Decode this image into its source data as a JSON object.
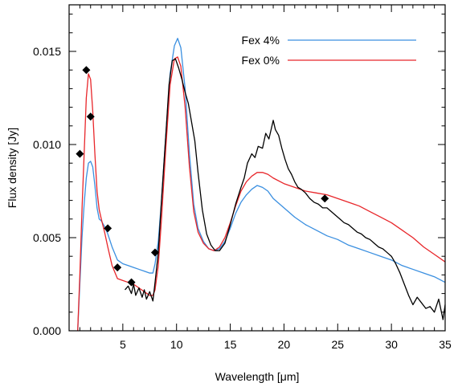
{
  "chart_data": {
    "type": "line",
    "xlabel": "Wavelength [μm]",
    "ylabel": "Flux density [Jy]",
    "xlim": [
      0,
      35
    ],
    "ylim": [
      0,
      0.0175
    ],
    "x_ticks": [
      5,
      10,
      15,
      20,
      25,
      30,
      35
    ],
    "x_tick_labels": [
      "5",
      "10",
      "15",
      "20",
      "25",
      "30",
      "35"
    ],
    "y_ticks": [
      0.0,
      0.005,
      0.01,
      0.015
    ],
    "y_tick_labels": [
      "0.000",
      "0.005",
      "0.010",
      "0.015"
    ],
    "legend_position": "top-right",
    "series": [
      {
        "name": "Fex 4%",
        "color": "#3a8fe0",
        "x": [
          0.8,
          1.0,
          1.2,
          1.4,
          1.6,
          1.8,
          2.0,
          2.2,
          2.4,
          2.6,
          2.8,
          3.0,
          3.3,
          3.6,
          4.0,
          4.5,
          5.0,
          5.5,
          6.0,
          6.5,
          7.0,
          7.5,
          7.8,
          8.0,
          8.3,
          8.6,
          9.0,
          9.4,
          9.8,
          10.1,
          10.4,
          10.8,
          11.2,
          11.6,
          12.0,
          12.5,
          13.0,
          13.5,
          14.0,
          14.5,
          15.0,
          15.5,
          16.0,
          16.5,
          17.0,
          17.5,
          18.0,
          18.5,
          19.0,
          20.0,
          21.0,
          22.0,
          23.0,
          24.0,
          25.0,
          26.0,
          27.0,
          28.0,
          29.0,
          30.0,
          31.0,
          32.0,
          33.0,
          34.0,
          35.0
        ],
        "y": [
          0.0,
          0.0025,
          0.005,
          0.0068,
          0.0082,
          0.009,
          0.0091,
          0.0088,
          0.0078,
          0.0066,
          0.006,
          0.0059,
          0.0056,
          0.0052,
          0.0045,
          0.0038,
          0.0036,
          0.0035,
          0.0034,
          0.0033,
          0.0032,
          0.0031,
          0.0031,
          0.0036,
          0.0048,
          0.007,
          0.0105,
          0.0138,
          0.0153,
          0.0157,
          0.0152,
          0.013,
          0.0095,
          0.0068,
          0.0055,
          0.0048,
          0.0044,
          0.0043,
          0.0044,
          0.0048,
          0.0055,
          0.0063,
          0.0069,
          0.0073,
          0.0076,
          0.0078,
          0.0077,
          0.0075,
          0.0071,
          0.0066,
          0.0061,
          0.0057,
          0.0054,
          0.0051,
          0.0049,
          0.0046,
          0.0044,
          0.0042,
          0.004,
          0.0038,
          0.0035,
          0.0033,
          0.0031,
          0.0029,
          0.0026
        ]
      },
      {
        "name": "Fex 0%",
        "color": "#e8262a",
        "x": [
          0.8,
          1.0,
          1.2,
          1.4,
          1.6,
          1.8,
          2.0,
          2.2,
          2.4,
          2.6,
          2.8,
          3.0,
          3.3,
          3.6,
          4.0,
          4.5,
          5.0,
          5.5,
          6.0,
          6.5,
          7.0,
          7.5,
          7.8,
          8.0,
          8.3,
          8.6,
          9.0,
          9.4,
          9.8,
          10.1,
          10.4,
          10.8,
          11.2,
          11.6,
          12.0,
          12.5,
          13.0,
          13.5,
          14.0,
          14.5,
          15.0,
          15.5,
          16.0,
          16.5,
          17.0,
          17.5,
          18.0,
          18.5,
          19.0,
          20.0,
          21.0,
          22.0,
          23.0,
          24.0,
          25.0,
          26.0,
          27.0,
          28.0,
          29.0,
          30.0,
          31.0,
          32.0,
          33.0,
          34.0,
          35.0
        ],
        "y": [
          0.0,
          0.003,
          0.0065,
          0.0095,
          0.0125,
          0.0138,
          0.0135,
          0.0118,
          0.0095,
          0.0075,
          0.0065,
          0.006,
          0.0053,
          0.0045,
          0.0035,
          0.0028,
          0.0027,
          0.0026,
          0.0025,
          0.0023,
          0.0021,
          0.0019,
          0.0019,
          0.0022,
          0.0035,
          0.006,
          0.0098,
          0.0132,
          0.0146,
          0.0147,
          0.0142,
          0.012,
          0.0088,
          0.0064,
          0.0053,
          0.0047,
          0.0044,
          0.0043,
          0.0045,
          0.005,
          0.0058,
          0.0067,
          0.0075,
          0.008,
          0.0083,
          0.0085,
          0.0085,
          0.0084,
          0.0082,
          0.0079,
          0.0077,
          0.0075,
          0.0074,
          0.0073,
          0.0071,
          0.0069,
          0.0067,
          0.0064,
          0.0061,
          0.0058,
          0.0054,
          0.005,
          0.0045,
          0.0041,
          0.0037
        ]
      },
      {
        "name": "",
        "color": "#000000",
        "x": [
          5.2,
          5.5,
          5.8,
          6.0,
          6.2,
          6.5,
          6.8,
          7.0,
          7.2,
          7.5,
          7.8,
          8.0,
          8.3,
          8.6,
          9.0,
          9.3,
          9.6,
          9.9,
          10.2,
          10.5,
          10.8,
          11.1,
          11.4,
          11.7,
          12.0,
          12.4,
          12.8,
          13.2,
          13.6,
          14.0,
          14.5,
          15.0,
          15.5,
          16.0,
          16.3,
          16.6,
          17.0,
          17.3,
          17.6,
          18.0,
          18.3,
          18.6,
          19.0,
          19.2,
          19.5,
          19.8,
          20.1,
          20.4,
          20.7,
          21.0,
          21.3,
          21.6,
          22.0,
          22.4,
          22.8,
          23.2,
          23.6,
          24.0,
          24.4,
          24.8,
          25.2,
          25.6,
          26.0,
          26.4,
          26.8,
          27.2,
          27.6,
          28.0,
          28.4,
          28.8,
          29.2,
          29.6,
          30.0,
          30.4,
          30.8,
          31.2,
          31.6,
          32.0,
          32.4,
          32.8,
          33.2,
          33.6,
          34.0,
          34.4,
          34.8,
          35.0
        ],
        "y": [
          0.0022,
          0.0024,
          0.002,
          0.0025,
          0.0019,
          0.0023,
          0.0018,
          0.0022,
          0.0017,
          0.0021,
          0.0016,
          0.0026,
          0.0042,
          0.007,
          0.0105,
          0.0132,
          0.0145,
          0.0146,
          0.0141,
          0.0135,
          0.0128,
          0.0122,
          0.0112,
          0.0102,
          0.0085,
          0.0065,
          0.0052,
          0.0046,
          0.0043,
          0.0043,
          0.0047,
          0.0057,
          0.0068,
          0.0077,
          0.0082,
          0.009,
          0.0095,
          0.0093,
          0.0099,
          0.0098,
          0.0106,
          0.0103,
          0.0113,
          0.0108,
          0.0105,
          0.0098,
          0.0092,
          0.0087,
          0.0084,
          0.008,
          0.0077,
          0.0076,
          0.0074,
          0.0071,
          0.0069,
          0.0068,
          0.0066,
          0.0066,
          0.0064,
          0.0062,
          0.006,
          0.0058,
          0.0057,
          0.0055,
          0.0053,
          0.0052,
          0.005,
          0.0049,
          0.0047,
          0.0045,
          0.0044,
          0.0042,
          0.004,
          0.0036,
          0.0031,
          0.0025,
          0.0019,
          0.0014,
          0.0018,
          0.0015,
          0.0012,
          0.0013,
          0.001,
          0.0017,
          0.0006,
          0.0014
        ]
      }
    ],
    "markers": {
      "shape": "diamond",
      "color": "#000000",
      "x": [
        1.0,
        1.6,
        2.0,
        3.6,
        4.5,
        5.8,
        8.0,
        23.8
      ],
      "y": [
        0.0095,
        0.014,
        0.0115,
        0.0055,
        0.0034,
        0.0026,
        0.0042,
        0.0071
      ]
    }
  }
}
